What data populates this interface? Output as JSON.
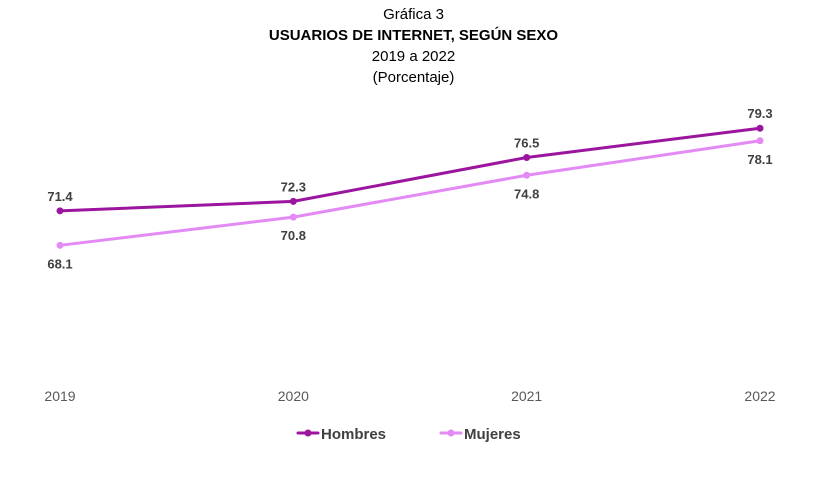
{
  "header": {
    "figure_label": "Gráfica 3",
    "title": "USUARIOS DE INTERNET, SEGÚN SEXO",
    "period": "2019 a 2022",
    "unit": "(Porcentaje)"
  },
  "chart_data": {
    "type": "line",
    "title": "USUARIOS DE INTERNET, SEGÚN SEXO",
    "subtitle": "2019 a 2022",
    "xlabel": "",
    "ylabel": "",
    "categories": [
      "2019",
      "2020",
      "2021",
      "2022"
    ],
    "ylim": [
      60,
      82
    ],
    "grid": false,
    "legend_position": "bottom",
    "series": [
      {
        "name": "Hombres",
        "values": [
          71.4,
          72.3,
          76.5,
          79.3
        ],
        "labels": [
          "71.4",
          "72.3",
          "76.5",
          "79.3"
        ],
        "color": "#9b159f",
        "label_position": "above"
      },
      {
        "name": "Mujeres",
        "values": [
          68.1,
          70.8,
          74.8,
          78.1
        ],
        "labels": [
          "68.1",
          "70.8",
          "74.8",
          "78.1"
        ],
        "color": "#e48af5",
        "label_position": "below"
      }
    ]
  }
}
